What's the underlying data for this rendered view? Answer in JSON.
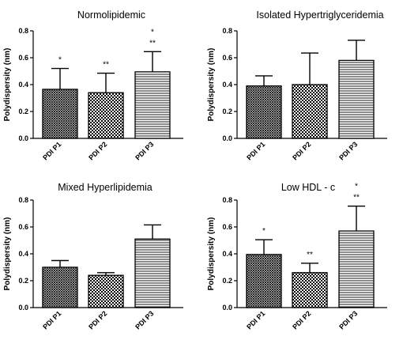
{
  "chart_data": [
    {
      "type": "bar",
      "title": "Normolipidemic",
      "ylabel": "Polydispersity (nm)",
      "ylim": [
        0,
        0.8
      ],
      "yticks": [
        "0.0",
        "0.2",
        "0.4",
        "0.6",
        "0.8"
      ],
      "categories": [
        "PDI P1",
        "PDI P2",
        "PDI P3"
      ],
      "values": [
        0.365,
        0.34,
        0.495
      ],
      "errors": [
        0.155,
        0.145,
        0.15
      ],
      "annotations": [
        [
          "*"
        ],
        [
          "**"
        ],
        [
          "*",
          "**"
        ]
      ]
    },
    {
      "type": "bar",
      "title": "Isolated Hypertriglyceridemia",
      "ylabel": "Polydispersity (nm)",
      "ylim": [
        0,
        0.8
      ],
      "yticks": [
        "0.0",
        "0.2",
        "0.4",
        "0.6",
        "0.8"
      ],
      "categories": [
        "PDI P1",
        "PDI P2",
        "PDI P3"
      ],
      "values": [
        0.39,
        0.4,
        0.58
      ],
      "errors": [
        0.075,
        0.235,
        0.15
      ],
      "annotations": [
        [],
        [],
        []
      ]
    },
    {
      "type": "bar",
      "title": "Mixed Hyperlipidemia",
      "ylabel": "Polydispersity (nm)",
      "ylim": [
        0,
        0.8
      ],
      "yticks": [
        "0.0",
        "0.2",
        "0.4",
        "0.6",
        "0.8"
      ],
      "categories": [
        "PDI P1",
        "PDI P2",
        "PDI P3"
      ],
      "values": [
        0.3,
        0.24,
        0.51
      ],
      "errors": [
        0.05,
        0.02,
        0.105
      ],
      "annotations": [
        [],
        [],
        []
      ]
    },
    {
      "type": "bar",
      "title": "Low HDL - c",
      "ylabel": "Polydispersity (nm)",
      "ylim": [
        0,
        0.8
      ],
      "yticks": [
        "0.0",
        "0.2",
        "0.4",
        "0.6",
        "0.8"
      ],
      "categories": [
        "PDI P1",
        "PDI P2",
        "PDI P3"
      ],
      "values": [
        0.395,
        0.26,
        0.57
      ],
      "errors": [
        0.11,
        0.07,
        0.185
      ],
      "annotations": [
        [
          "*"
        ],
        [
          "**"
        ],
        [
          "*",
          "**"
        ]
      ]
    }
  ],
  "bar_patterns": [
    "crosshatch",
    "checker",
    "horizontal-lines"
  ],
  "colors": {
    "foreground": "#000000",
    "background": "#ffffff"
  }
}
